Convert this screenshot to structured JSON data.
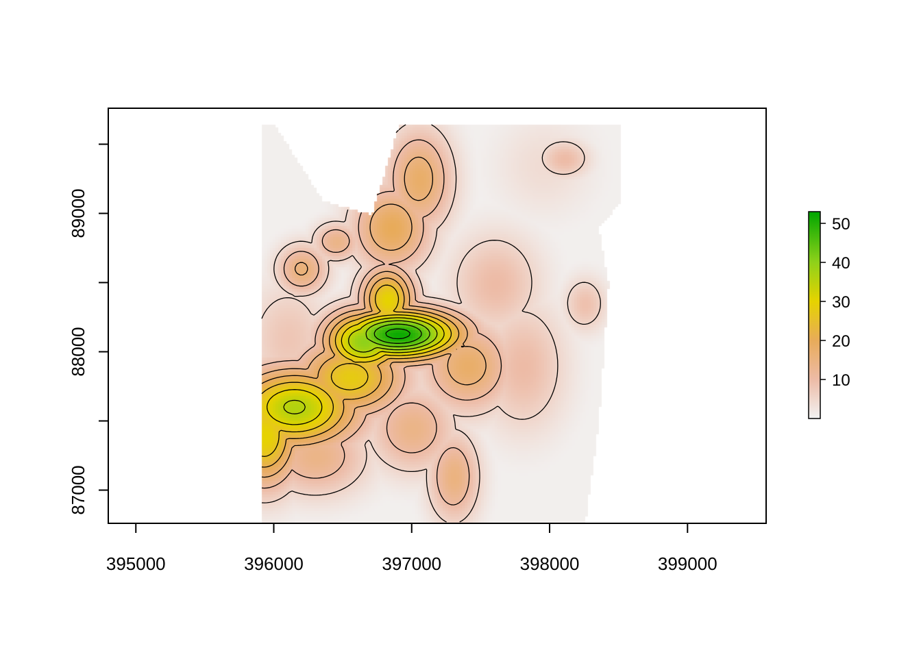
{
  "chart_data": {
    "type": "heatmap",
    "title": "",
    "xlabel": "",
    "ylabel": "",
    "xlim": [
      394800,
      399570
    ],
    "ylim": [
      86760,
      89760
    ],
    "x_ticks": [
      395000,
      396000,
      397000,
      398000,
      399000
    ],
    "x_tick_labels": [
      "395000",
      "396000",
      "397000",
      "398000",
      "399000"
    ],
    "y_ticks": [
      87000,
      87500,
      88000,
      88500,
      89000,
      89500
    ],
    "y_labeled_ticks": [
      87000,
      88000,
      89000
    ],
    "y_tick_labels": [
      "87000",
      "88000",
      "89000"
    ],
    "grid": false,
    "legend": {
      "placement": "right",
      "range": [
        0,
        53
      ],
      "ticks": [
        10,
        20,
        30,
        40,
        50
      ],
      "tick_labels": [
        "10",
        "20",
        "30",
        "40",
        "50"
      ],
      "color_stops": [
        {
          "value": 0,
          "color": "#f2f2f2"
        },
        {
          "value": 10,
          "color": "#edbba6"
        },
        {
          "value": 20,
          "color": "#e8ab5a"
        },
        {
          "value": 30,
          "color": "#e6d300"
        },
        {
          "value": 40,
          "color": "#8fd11a"
        },
        {
          "value": 53,
          "color": "#00a600"
        }
      ]
    },
    "contour_levels": [
      5,
      10,
      15,
      20,
      25,
      30,
      35,
      40,
      45,
      50
    ],
    "elevation_peaks": [
      {
        "x": 396900,
        "y": 88130,
        "value": 52,
        "sx": 320,
        "sy": 130
      },
      {
        "x": 396650,
        "y": 88080,
        "value": 40,
        "sx": 210,
        "sy": 160
      },
      {
        "x": 396820,
        "y": 88380,
        "value": 30,
        "sx": 140,
        "sy": 170
      },
      {
        "x": 396150,
        "y": 87600,
        "value": 36,
        "sx": 330,
        "sy": 210
      },
      {
        "x": 395930,
        "y": 87400,
        "value": 30,
        "sx": 180,
        "sy": 260
      },
      {
        "x": 396550,
        "y": 87820,
        "value": 28,
        "sx": 280,
        "sy": 200
      },
      {
        "x": 396200,
        "y": 88600,
        "value": 16,
        "sx": 130,
        "sy": 130
      },
      {
        "x": 396450,
        "y": 88800,
        "value": 14,
        "sx": 120,
        "sy": 100
      },
      {
        "x": 396850,
        "y": 88900,
        "value": 20,
        "sx": 200,
        "sy": 220
      },
      {
        "x": 397050,
        "y": 89250,
        "value": 18,
        "sx": 170,
        "sy": 260
      },
      {
        "x": 397400,
        "y": 87900,
        "value": 18,
        "sx": 230,
        "sy": 230
      },
      {
        "x": 397300,
        "y": 87100,
        "value": 15,
        "sx": 130,
        "sy": 230
      },
      {
        "x": 397800,
        "y": 87900,
        "value": 10,
        "sx": 220,
        "sy": 330
      },
      {
        "x": 397600,
        "y": 88500,
        "value": 10,
        "sx": 230,
        "sy": 260
      },
      {
        "x": 396300,
        "y": 87250,
        "value": 14,
        "sx": 260,
        "sy": 200
      },
      {
        "x": 397000,
        "y": 87450,
        "value": 14,
        "sx": 220,
        "sy": 220
      },
      {
        "x": 398100,
        "y": 89400,
        "value": 10,
        "sx": 130,
        "sy": 100
      },
      {
        "x": 398250,
        "y": 88350,
        "value": 9,
        "sx": 110,
        "sy": 140
      },
      {
        "x": 397950,
        "y": 89350,
        "value": 4,
        "sx": 260,
        "sy": 260
      },
      {
        "x": 396100,
        "y": 88100,
        "value": 8,
        "sx": 220,
        "sy": 300
      }
    ]
  }
}
